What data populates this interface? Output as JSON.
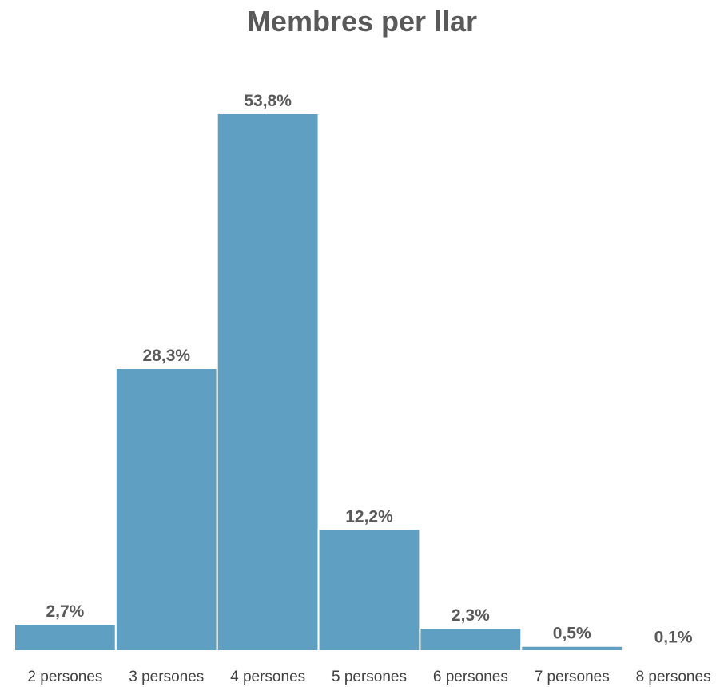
{
  "chart_data": {
    "type": "bar",
    "title": "Membres per llar",
    "xlabel": "",
    "ylabel": "",
    "categories": [
      "2 persones",
      "3 persones",
      "4 persones",
      "5 persones",
      "6 persones",
      "7 persones",
      "8 persones"
    ],
    "values": [
      2.7,
      28.3,
      53.8,
      12.2,
      2.3,
      0.5,
      0.1
    ],
    "data_labels": [
      "2,7%",
      "28,3%",
      "53,8%",
      "12,2%",
      "2,3%",
      "0,5%",
      "0,1%"
    ],
    "ylim": [
      0,
      53.8
    ],
    "grid": false,
    "legend": "none",
    "colors": {
      "bar": "#5fa0c2",
      "text": "#595959"
    }
  }
}
